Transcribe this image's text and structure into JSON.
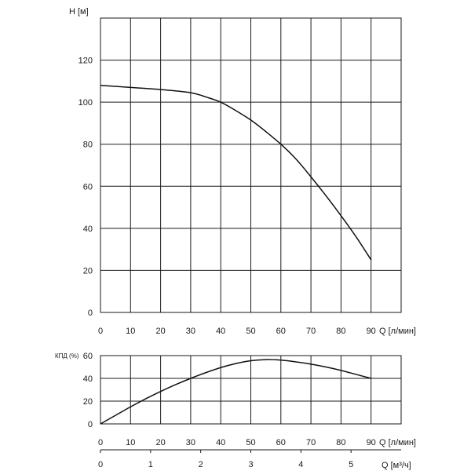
{
  "chart_data": [
    {
      "type": "line",
      "ylabel": "H [м]",
      "xlabel": "Q [л/мин]",
      "xlim": [
        0,
        100
      ],
      "ylim": [
        0,
        140
      ],
      "grid": true,
      "x_ticks": [
        0,
        10,
        20,
        30,
        40,
        50,
        60,
        70,
        80,
        90
      ],
      "y_ticks": [
        0,
        20,
        40,
        60,
        80,
        100,
        120
      ],
      "series": [
        {
          "x": [
            0,
            10,
            20,
            30,
            35,
            40,
            45,
            50,
            55,
            60,
            65,
            70,
            75,
            80,
            85,
            90
          ],
          "y": [
            108,
            107,
            106,
            104.5,
            102.5,
            100,
            96,
            91.5,
            86,
            80,
            73,
            64.5,
            55.5,
            46,
            36,
            25
          ]
        }
      ]
    },
    {
      "type": "line",
      "ylabel": "КПД (%)",
      "xlabel": "Q [л/мин]",
      "xlim": [
        0,
        100
      ],
      "ylim": [
        0,
        60
      ],
      "grid": true,
      "x_ticks": [
        0,
        10,
        20,
        30,
        40,
        50,
        60,
        70,
        80,
        90
      ],
      "y_ticks": [
        0,
        20,
        40,
        60
      ],
      "series": [
        {
          "x": [
            0,
            5,
            10,
            15,
            20,
            25,
            30,
            35,
            40,
            45,
            50,
            55,
            60,
            65,
            70,
            75,
            80,
            85,
            90
          ],
          "y": [
            0,
            7.5,
            15,
            22,
            28.5,
            34.5,
            40,
            45,
            49.5,
            53,
            55.5,
            56.5,
            56,
            54.5,
            52.5,
            50,
            47,
            43.5,
            40
          ]
        }
      ]
    }
  ],
  "secondary_axis": {
    "label": "Q [м³/ч]",
    "ticks": [
      0,
      1,
      2,
      3,
      4,
      5
    ],
    "range": [
      0,
      6
    ]
  }
}
